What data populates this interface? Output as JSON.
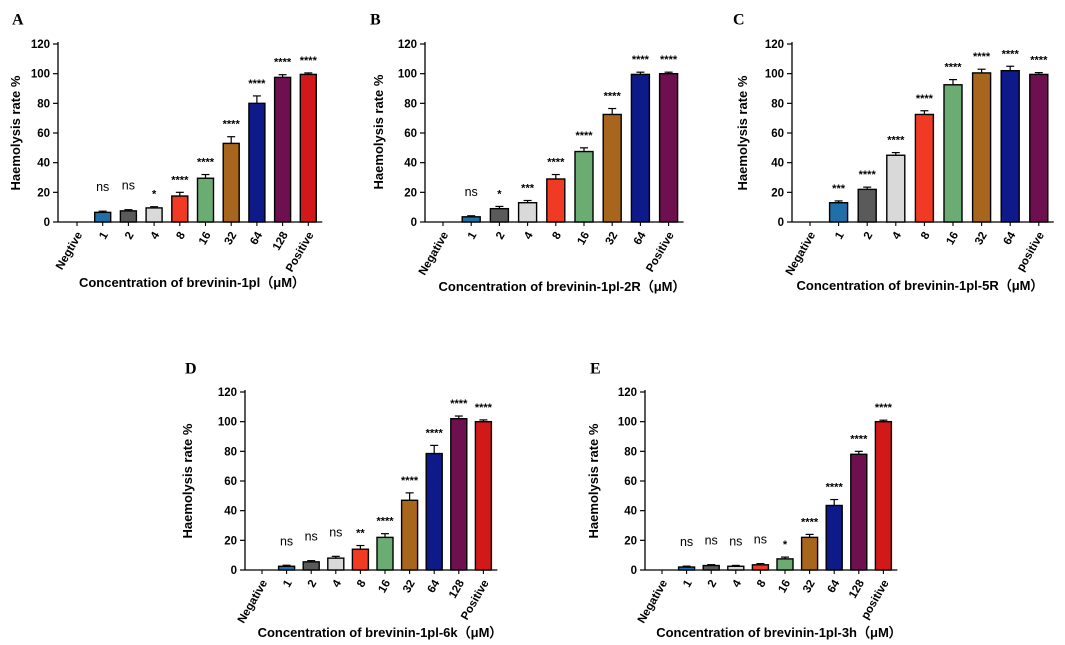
{
  "figure": {
    "colors": {
      "blue_bar": "#1f6fa8",
      "grey_bar": "#5a5a5a",
      "light_bar": "#d9d9d9",
      "red_bar": "#f03a23",
      "green_bar": "#6aac72",
      "brown_bar": "#a8651e",
      "navy_bar": "#0f1a8a",
      "purple_bar": "#6e0f4f",
      "crimson_bar": "#d21818"
    }
  },
  "chart_data": [
    {
      "panel": "A",
      "type": "bar",
      "ylabel": "Haemolysis rate %",
      "xlabel": "Concentration of brevinin-1pl（μM）",
      "ylim": [
        0,
        120
      ],
      "yticks": [
        "0",
        "20",
        "40",
        "60",
        "80",
        "100",
        "120"
      ],
      "categories": [
        "Negtive",
        "1",
        "2",
        "4",
        "8",
        "16",
        "32",
        "64",
        "128",
        "Positive"
      ],
      "values": [
        0,
        6.5,
        7.5,
        9.5,
        17.5,
        29.5,
        53,
        80,
        97.5,
        99.5
      ],
      "errors": [
        0,
        0.8,
        0.8,
        0.8,
        2.5,
        2.5,
        4.5,
        5,
        1.8,
        1
      ],
      "significance": [
        "",
        "ns",
        "ns",
        "*",
        "****",
        "****",
        "****",
        "****",
        "****",
        "****"
      ],
      "colors": [
        "#1f6fa8",
        "#1f6fa8",
        "#5a5a5a",
        "#d9d9d9",
        "#f03a23",
        "#6aac72",
        "#a8651e",
        "#0f1a8a",
        "#6e0f4f",
        "#d21818"
      ]
    },
    {
      "panel": "B",
      "type": "bar",
      "ylabel": "Haemolysis rate %",
      "xlabel": "Concentration of brevinin-1pl-2R（μM）",
      "ylim": [
        0,
        120
      ],
      "yticks": [
        "0",
        "20",
        "40",
        "60",
        "80",
        "100",
        "120"
      ],
      "categories": [
        "Negative",
        "1",
        "2",
        "4",
        "8",
        "16",
        "32",
        "64",
        "Positive"
      ],
      "values": [
        0,
        3.5,
        9,
        13,
        29,
        47.5,
        72.5,
        99.5,
        100
      ],
      "errors": [
        0,
        0.7,
        1.5,
        1.5,
        3,
        2.5,
        4,
        1.5,
        1
      ],
      "significance": [
        "",
        "ns",
        "*",
        "***",
        "****",
        "****",
        "****",
        "****",
        "****"
      ],
      "colors": [
        "#1f6fa8",
        "#1f6fa8",
        "#5a5a5a",
        "#d9d9d9",
        "#f03a23",
        "#6aac72",
        "#a8651e",
        "#0f1a8a",
        "#6e0f4f"
      ]
    },
    {
      "panel": "C",
      "type": "bar",
      "ylabel": "Haemolysis rate %",
      "xlabel": "Concentration of brevinin-1pl-5R（μM）",
      "ylim": [
        0,
        120
      ],
      "yticks": [
        "0",
        "20",
        "40",
        "60",
        "80",
        "100",
        "120"
      ],
      "categories": [
        "Negative",
        "1",
        "2",
        "4",
        "8",
        "16",
        "32",
        "64",
        "positive"
      ],
      "values": [
        0,
        13,
        22,
        45,
        72.5,
        92.5,
        100.5,
        102,
        99.5
      ],
      "errors": [
        0,
        1.2,
        1.5,
        1.8,
        2.5,
        3.5,
        2.5,
        3,
        1.2
      ],
      "significance": [
        "",
        "***",
        "****",
        "****",
        "****",
        "****",
        "****",
        "****",
        "****"
      ],
      "colors": [
        "#1f6fa8",
        "#1f6fa8",
        "#5a5a5a",
        "#d9d9d9",
        "#f03a23",
        "#6aac72",
        "#a8651e",
        "#0f1a8a",
        "#6e0f4f"
      ]
    },
    {
      "panel": "D",
      "type": "bar",
      "ylabel": "Haemolysis rate %",
      "xlabel": "Concentration of brevinin-1pl-6k（μM）",
      "ylim": [
        0,
        120
      ],
      "yticks": [
        "0",
        "20",
        "40",
        "60",
        "80",
        "100",
        "120"
      ],
      "categories": [
        "Negative",
        "1",
        "2",
        "4",
        "8",
        "16",
        "32",
        "64",
        "128",
        "Positive"
      ],
      "values": [
        0,
        2.5,
        5.5,
        8,
        14,
        22,
        47,
        78.5,
        102,
        100
      ],
      "errors": [
        0,
        0.7,
        0.8,
        1.2,
        2.5,
        2.5,
        5,
        5.5,
        1.8,
        1.2
      ],
      "significance": [
        "",
        "ns",
        "ns",
        "ns",
        "**",
        "****",
        "****",
        "****",
        "****",
        "****"
      ],
      "colors": [
        "#1f6fa8",
        "#1f6fa8",
        "#5a5a5a",
        "#d9d9d9",
        "#f03a23",
        "#6aac72",
        "#a8651e",
        "#0f1a8a",
        "#6e0f4f",
        "#d21818"
      ]
    },
    {
      "panel": "E",
      "type": "bar",
      "ylabel": "Haemolysis rate %",
      "xlabel": "Concentration of brevinin-1pl-3h（μM）",
      "ylim": [
        0,
        120
      ],
      "yticks": [
        "0",
        "20",
        "40",
        "60",
        "80",
        "100",
        "120"
      ],
      "categories": [
        "Negative",
        "1",
        "2",
        "4",
        "8",
        "16",
        "32",
        "64",
        "128",
        "positive"
      ],
      "values": [
        0,
        2,
        3,
        2.5,
        3.5,
        7.5,
        22,
        43.5,
        78,
        100
      ],
      "errors": [
        0,
        0.6,
        0.6,
        0.6,
        0.8,
        1.2,
        2,
        4,
        2,
        1
      ],
      "significance": [
        "",
        "ns",
        "ns",
        "ns",
        "ns",
        "*",
        "****",
        "****",
        "****",
        "****"
      ],
      "colors": [
        "#1f6fa8",
        "#1f6fa8",
        "#5a5a5a",
        "#d9d9d9",
        "#f03a23",
        "#6aac72",
        "#a8651e",
        "#0f1a8a",
        "#6e0f4f",
        "#d21818"
      ]
    }
  ]
}
